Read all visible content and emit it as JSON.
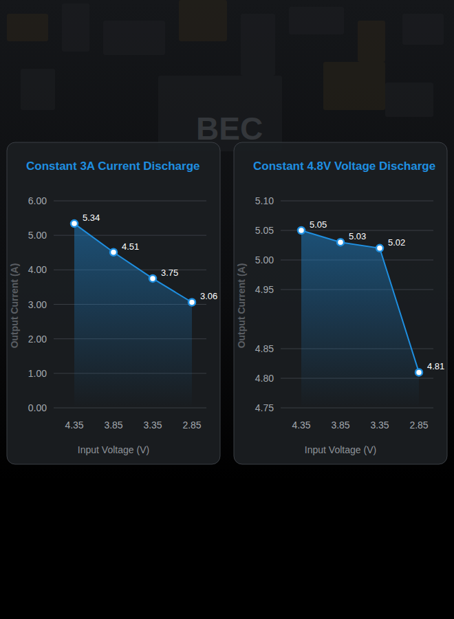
{
  "background_text": "BEC",
  "chart_data": [
    {
      "type": "line",
      "title": "Constant 3A Current Discharge",
      "x_label": "Input Voltage (V)",
      "y_label": "Output Current (A)",
      "categories": [
        "4.35",
        "3.85",
        "3.35",
        "2.85"
      ],
      "values": [
        5.34,
        4.51,
        3.75,
        3.06
      ],
      "color": "#1f8fe0",
      "marker": "circle",
      "grid": true,
      "data_labels": true,
      "ylim": [
        0,
        6
      ],
      "yticks": [
        {
          "value": 0,
          "label": "0.00"
        },
        {
          "value": 1,
          "label": "1.00"
        },
        {
          "value": 2,
          "label": "2.00"
        },
        {
          "value": 3,
          "label": "3.00"
        },
        {
          "value": 4,
          "label": "4.00"
        },
        {
          "value": 5,
          "label": "5.00"
        },
        {
          "value": 6,
          "label": "6.00"
        }
      ]
    },
    {
      "type": "line",
      "title": "Constant 4.8V Voltage Discharge",
      "x_label": "Input Voltage (V)",
      "y_label": "Output Current (A)",
      "categories": [
        "4.35",
        "3.85",
        "3.35",
        "2.85"
      ],
      "values": [
        5.05,
        5.03,
        5.02,
        4.81
      ],
      "color": "#1f8fe0",
      "marker": "circle",
      "grid": true,
      "data_labels": true,
      "ylim": [
        4.75,
        5.1
      ],
      "yticks": [
        4.75,
        {
          "value": 4.8,
          "label": "4.80"
        },
        4.85,
        4.95,
        {
          "value": 5.0,
          "label": "5.00"
        },
        5.05,
        {
          "value": 5.1,
          "label": "5.10"
        }
      ]
    }
  ]
}
